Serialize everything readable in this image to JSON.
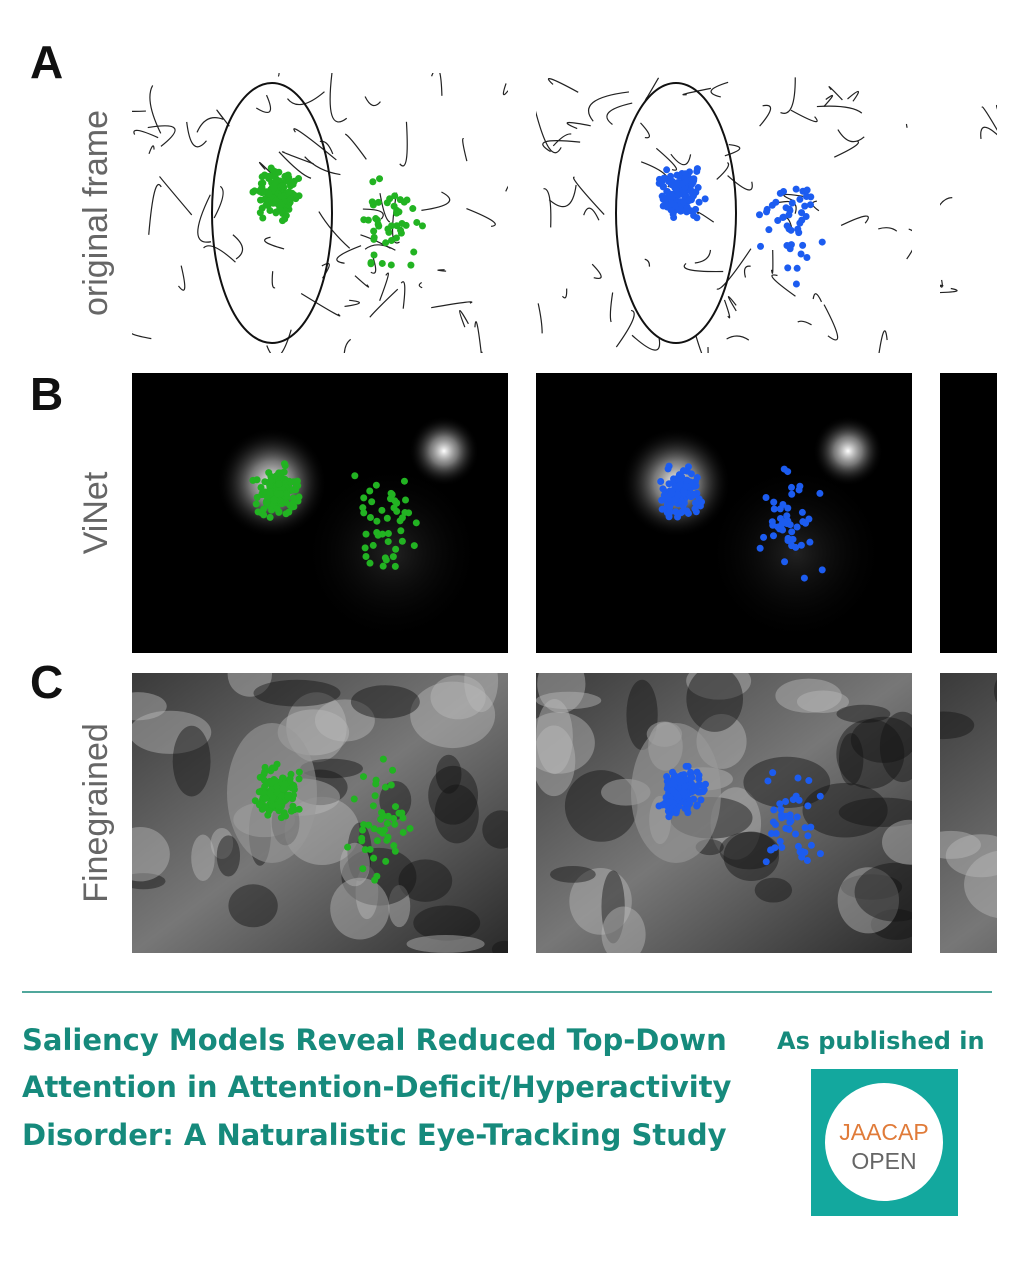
{
  "panels": [
    {
      "letter": "A",
      "label": "original frame"
    },
    {
      "letter": "B",
      "label": "ViNet"
    },
    {
      "letter": "C",
      "label": "Finegrained"
    }
  ],
  "title": {
    "lines": [
      "Saliency Models Reveal Reduced Top-Down",
      "Attention in Attention-Deficit/Hyperactivity",
      "Disorder: A Naturalistic Eye-Tracking Study"
    ]
  },
  "publication": {
    "label": "As published in",
    "logo": {
      "line1": "JAACAP",
      "line2": "OPEN"
    }
  }
}
